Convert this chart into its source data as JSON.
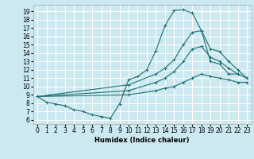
{
  "xlabel": "Humidex (Indice chaleur)",
  "bg_color": "#cce8f0",
  "grid_color": "#ffffff",
  "line_color": "#1a7070",
  "xlim": [
    -0.5,
    23.5
  ],
  "ylim": [
    5.5,
    19.8
  ],
  "xticks": [
    0,
    1,
    2,
    3,
    4,
    5,
    6,
    7,
    8,
    9,
    10,
    11,
    12,
    13,
    14,
    15,
    16,
    17,
    18,
    19,
    20,
    21,
    22,
    23
  ],
  "yticks": [
    6,
    7,
    8,
    9,
    10,
    11,
    12,
    13,
    14,
    15,
    16,
    17,
    18,
    19
  ],
  "line1_x": [
    0,
    1,
    2,
    3,
    4,
    5,
    6,
    7,
    8,
    9,
    10,
    11,
    12,
    13,
    14,
    15,
    16,
    17,
    18,
    19,
    20,
    21,
    22
  ],
  "line1_y": [
    8.8,
    8.1,
    7.9,
    7.7,
    7.2,
    7.0,
    6.6,
    6.4,
    6.2,
    7.9,
    10.8,
    11.2,
    12.0,
    14.3,
    17.3,
    19.1,
    19.2,
    18.8,
    16.7,
    13.0,
    12.7,
    11.5,
    11.5
  ],
  "line2_x": [
    0,
    10,
    13,
    14,
    15,
    16,
    17,
    18,
    19,
    20,
    21,
    22,
    23
  ],
  "line2_y": [
    8.8,
    10.2,
    11.5,
    12.2,
    13.2,
    15.0,
    16.5,
    16.7,
    14.5,
    14.2,
    13.0,
    12.0,
    11.0
  ],
  "line3_x": [
    0,
    10,
    13,
    14,
    15,
    16,
    17,
    18,
    19,
    20,
    21,
    22,
    23
  ],
  "line3_y": [
    8.8,
    9.5,
    10.5,
    11.0,
    11.8,
    13.0,
    14.5,
    14.8,
    13.5,
    13.0,
    12.2,
    11.5,
    11.0
  ],
  "line4_x": [
    0,
    10,
    13,
    14,
    15,
    16,
    17,
    18,
    19,
    20,
    21,
    22,
    23
  ],
  "line4_y": [
    8.8,
    9.0,
    9.5,
    9.8,
    10.0,
    10.5,
    11.0,
    11.5,
    11.2,
    11.0,
    10.8,
    10.5,
    10.5
  ]
}
